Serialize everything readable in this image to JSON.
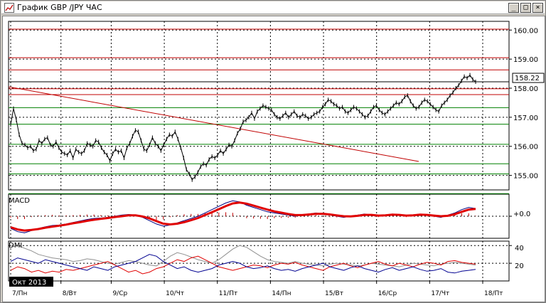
{
  "window": {
    "title": "График GBP /JPY  ЧАС",
    "buttons": {
      "minimize": "_",
      "maximize": "□",
      "close": "×"
    }
  },
  "chart_data": {
    "type": "line",
    "title": "",
    "price": {
      "ylim": [
        154.5,
        160.3
      ],
      "ticks": [
        "160.00",
        "159.00",
        "158.00",
        "157.00",
        "156.00",
        "155.00"
      ],
      "tick_values": [
        160,
        159,
        158,
        157,
        156,
        155
      ],
      "current_value": "158.22",
      "current": 158.22,
      "resistance_levels": [
        160.03,
        159.05,
        158.63,
        157.98,
        157.78
      ],
      "support_levels": [
        157.33,
        156.76,
        156.07,
        155.4,
        155.05,
        154.37
      ],
      "trendline": {
        "from": [
          0,
          158.05
        ],
        "to": [
          166,
          155.48
        ]
      },
      "series": [
        156.75,
        157.3,
        156.9,
        156.4,
        156.1,
        156.05,
        155.95,
        156.0,
        155.85,
        155.9,
        156.2,
        156.1,
        156.25,
        156.3,
        156.05,
        156.0,
        156.15,
        155.95,
        155.8,
        155.75,
        155.7,
        155.85,
        155.6,
        155.9,
        155.8,
        155.75,
        155.85,
        156.1,
        156.05,
        156.0,
        156.2,
        156.15,
        155.95,
        155.8,
        155.7,
        155.5,
        155.75,
        155.9,
        155.8,
        155.85,
        155.6,
        155.95,
        156.1,
        156.35,
        156.55,
        156.5,
        156.2,
        155.9,
        155.85,
        156.05,
        156.3,
        156.1,
        156.0,
        155.85,
        156.05,
        156.25,
        156.4,
        156.35,
        156.5,
        156.25,
        155.95,
        155.6,
        155.2,
        155.05,
        154.85,
        154.95,
        155.1,
        155.3,
        155.4,
        155.35,
        155.55,
        155.65,
        155.6,
        155.7,
        155.85,
        155.75,
        155.9,
        156.05,
        156.0,
        156.2,
        156.45,
        156.6,
        156.85,
        156.9,
        157.0,
        157.15,
        156.95,
        157.2,
        157.3,
        157.4,
        157.35,
        157.3,
        157.25,
        157.1,
        157.0,
        156.95,
        157.05,
        157.15,
        157.0,
        157.1,
        157.2,
        157.05,
        157.0,
        157.1,
        157.05,
        156.95,
        157.0,
        157.1,
        157.15,
        157.2,
        157.35,
        157.45,
        157.6,
        157.55,
        157.45,
        157.4,
        157.3,
        157.35,
        157.2,
        157.15,
        157.25,
        157.35,
        157.3,
        157.2,
        157.1,
        157.0,
        157.05,
        157.2,
        157.35,
        157.4,
        157.25,
        157.15,
        157.1,
        157.2,
        157.3,
        157.4,
        157.5,
        157.45,
        157.55,
        157.7,
        157.75,
        157.55,
        157.4,
        157.3,
        157.35,
        157.5,
        157.6,
        157.55,
        157.45,
        157.35,
        157.25,
        157.2,
        157.4,
        157.5,
        157.6,
        157.75,
        157.85,
        158.0,
        158.1,
        158.25,
        158.4,
        158.35,
        158.45,
        158.3,
        158.22
      ],
      "x_range": [
        0,
        166
      ]
    },
    "macd": {
      "label": "MACD",
      "tick": "+0.0",
      "ylim": [
        -1.0,
        1.0
      ],
      "line": [
        -0.55,
        -0.7,
        -0.75,
        -0.65,
        -0.55,
        -0.48,
        -0.42,
        -0.4,
        -0.35,
        -0.28,
        -0.22,
        -0.15,
        -0.1,
        -0.08,
        -0.05,
        0.0,
        0.05,
        0.08,
        0.05,
        -0.05,
        -0.2,
        -0.35,
        -0.45,
        -0.4,
        -0.3,
        -0.2,
        -0.1,
        0.0,
        0.15,
        0.3,
        0.45,
        0.6,
        0.7,
        0.65,
        0.5,
        0.4,
        0.3,
        0.2,
        0.15,
        0.1,
        0.05,
        0.0,
        0.05,
        0.1,
        0.15,
        0.1,
        0.05,
        0.0,
        -0.05,
        0.0,
        0.05,
        0.1,
        0.05,
        0.0,
        0.05,
        0.1,
        0.05,
        0.0,
        0.05,
        0.1,
        0.05,
        0.0,
        -0.05,
        0.05,
        0.15,
        0.3,
        0.4,
        0.35
      ],
      "signal": [
        -0.5,
        -0.6,
        -0.65,
        -0.62,
        -0.58,
        -0.52,
        -0.47,
        -0.43,
        -0.38,
        -0.32,
        -0.27,
        -0.21,
        -0.16,
        -0.12,
        -0.08,
        -0.04,
        0.0,
        0.04,
        0.04,
        -0.01,
        -0.1,
        -0.22,
        -0.34,
        -0.37,
        -0.34,
        -0.27,
        -0.18,
        -0.08,
        0.05,
        0.18,
        0.32,
        0.46,
        0.58,
        0.62,
        0.57,
        0.48,
        0.39,
        0.3,
        0.22,
        0.16,
        0.1,
        0.05,
        0.05,
        0.08,
        0.11,
        0.11,
        0.08,
        0.04,
        0.0,
        -0.01,
        0.02,
        0.06,
        0.06,
        0.03,
        0.04,
        0.07,
        0.06,
        0.03,
        0.04,
        0.07,
        0.06,
        0.03,
        0.0,
        0.02,
        0.09,
        0.2,
        0.3,
        0.33
      ]
    },
    "dmi": {
      "label": "DMI",
      "ticks": [
        "40",
        "20"
      ],
      "tick_values": [
        40,
        20
      ],
      "ylim": [
        0,
        45
      ],
      "adx": [
        38,
        40,
        37,
        34,
        30,
        28,
        26,
        25,
        24,
        22,
        23,
        25,
        24,
        22,
        20,
        19,
        21,
        23,
        22,
        20,
        18,
        17,
        22,
        28,
        32,
        30,
        27,
        24,
        22,
        20,
        24,
        30,
        36,
        40,
        38,
        33,
        28,
        24,
        22,
        21,
        20,
        22,
        20,
        19,
        18,
        17,
        19,
        20,
        19,
        18,
        17,
        18,
        20,
        19,
        18,
        17,
        16,
        18,
        20,
        19,
        18,
        17,
        19,
        20,
        21,
        20,
        19,
        18
      ],
      "plus_di": [
        12,
        16,
        14,
        10,
        12,
        9,
        11,
        10,
        13,
        12,
        14,
        16,
        18,
        20,
        22,
        18,
        14,
        10,
        12,
        8,
        10,
        14,
        16,
        20,
        24,
        22,
        26,
        28,
        24,
        20,
        16,
        14,
        12,
        14,
        16,
        18,
        17,
        15,
        18,
        20,
        19,
        21,
        18,
        16,
        14,
        12,
        16,
        18,
        20,
        17,
        15,
        18,
        20,
        22,
        19,
        17,
        20,
        18,
        16,
        19,
        21,
        20,
        18,
        22,
        23,
        21,
        20,
        19
      ],
      "minus_di": [
        22,
        26,
        24,
        22,
        20,
        24,
        22,
        20,
        18,
        16,
        14,
        12,
        16,
        14,
        12,
        16,
        18,
        20,
        22,
        26,
        30,
        28,
        22,
        18,
        14,
        16,
        12,
        10,
        12,
        14,
        18,
        20,
        22,
        20,
        16,
        14,
        15,
        17,
        14,
        12,
        13,
        11,
        14,
        16,
        18,
        20,
        16,
        14,
        12,
        15,
        17,
        14,
        12,
        10,
        13,
        15,
        12,
        14,
        16,
        13,
        11,
        12,
        14,
        10,
        9,
        11,
        12,
        13
      ]
    },
    "time_axis": {
      "labels": [
        "7/Пн",
        "8/Вт",
        "9/Ср",
        "10/Чт",
        "11/Пт",
        "14/Пн",
        "15/Вт",
        "16/Ср",
        "17/Чт",
        "18/Пт"
      ],
      "label_index": [
        0,
        18,
        36,
        55,
        74,
        93,
        112,
        131,
        150,
        169
      ],
      "month_label": "Окт 2013"
    }
  }
}
